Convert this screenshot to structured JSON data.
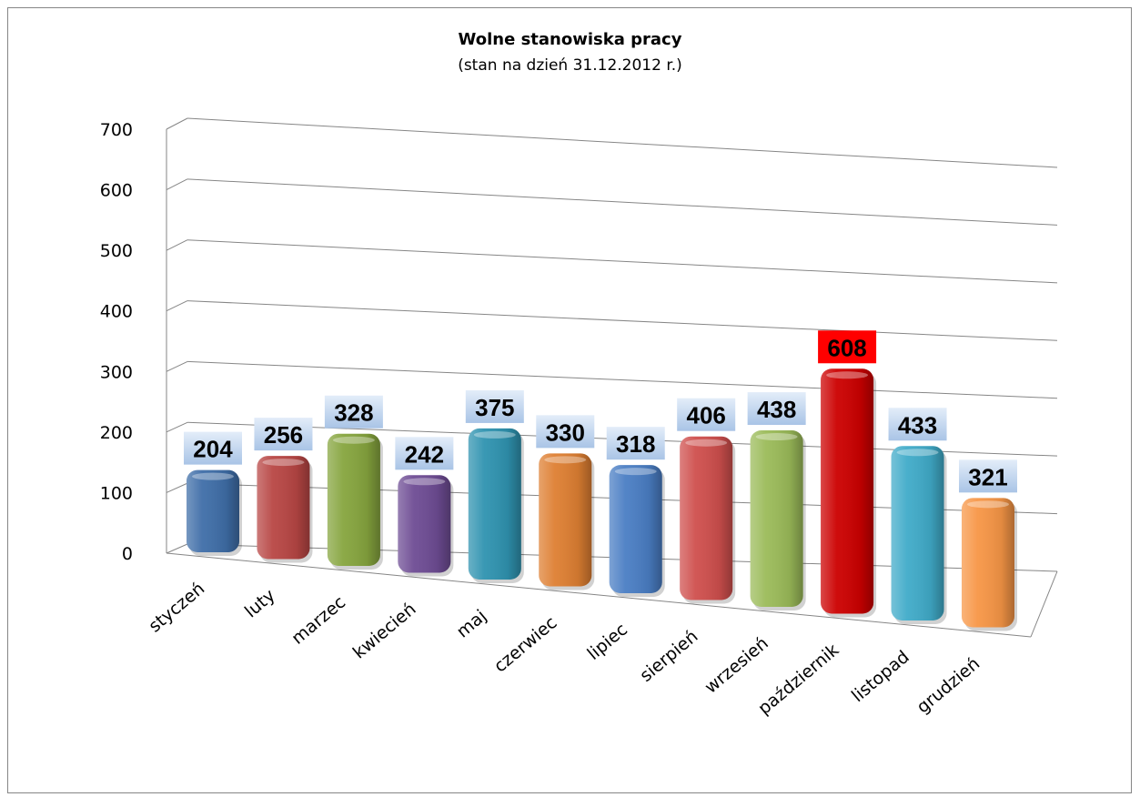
{
  "chart_data": {
    "type": "bar",
    "title": "Wolne stanowiska pracy",
    "subtitle": "(stan na dzień 31.12.2012 r.)",
    "categories": [
      "styczeń",
      "luty",
      "marzec",
      "kwiecień",
      "maj",
      "czerwiec",
      "lipiec",
      "sierpień",
      "wrzesień",
      "październik",
      "listopad",
      "grudzień"
    ],
    "values": [
      204,
      256,
      328,
      242,
      375,
      330,
      318,
      406,
      438,
      608,
      433,
      321
    ],
    "ylim": [
      0,
      700
    ],
    "yticks": [
      "0",
      "100",
      "200",
      "300",
      "400",
      "500",
      "600",
      "700"
    ],
    "grid": true,
    "legend": "none",
    "bar_colors": [
      "#3f6ea8",
      "#b84644",
      "#86a53e",
      "#6e4c94",
      "#2f93b0",
      "#de7f32",
      "#4a7ec4",
      "#cf4f4d",
      "#9bbb59",
      "#cc0000",
      "#40abc9",
      "#f79646"
    ],
    "label_fill": "#c6d9f1",
    "highlight_label_fill": "#ff0000"
  }
}
